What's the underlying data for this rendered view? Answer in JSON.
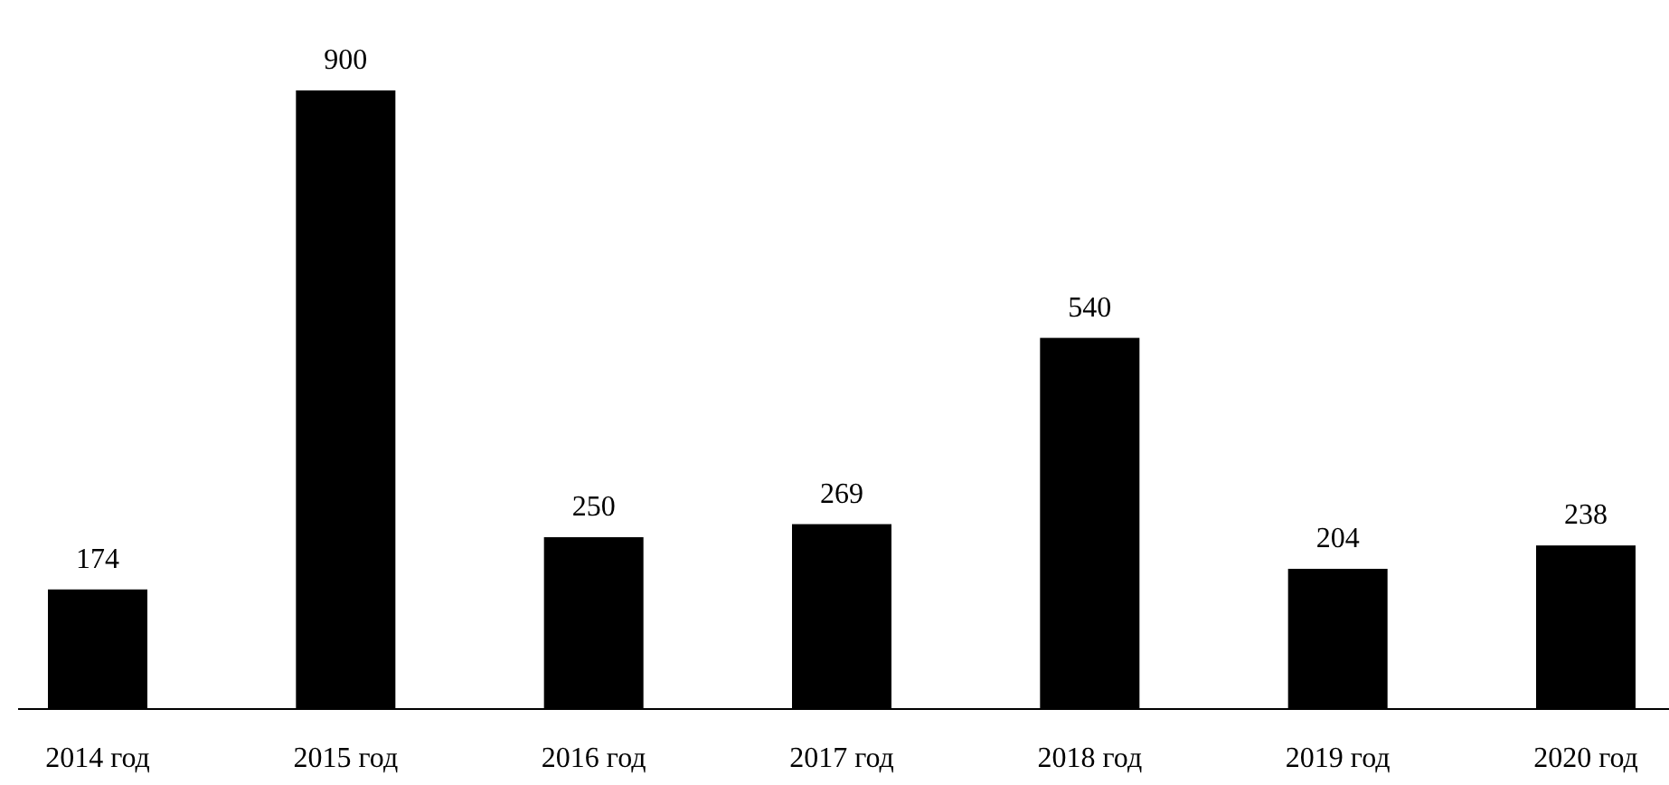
{
  "chart_data": {
    "type": "bar",
    "categories": [
      "2014 год",
      "2015 год",
      "2016 год",
      "2017 год",
      "2018 год",
      "2019 год",
      "2020 год"
    ],
    "values": [
      174,
      900,
      250,
      269,
      540,
      204,
      238
    ],
    "color": "#000000",
    "data_labels": true
  }
}
